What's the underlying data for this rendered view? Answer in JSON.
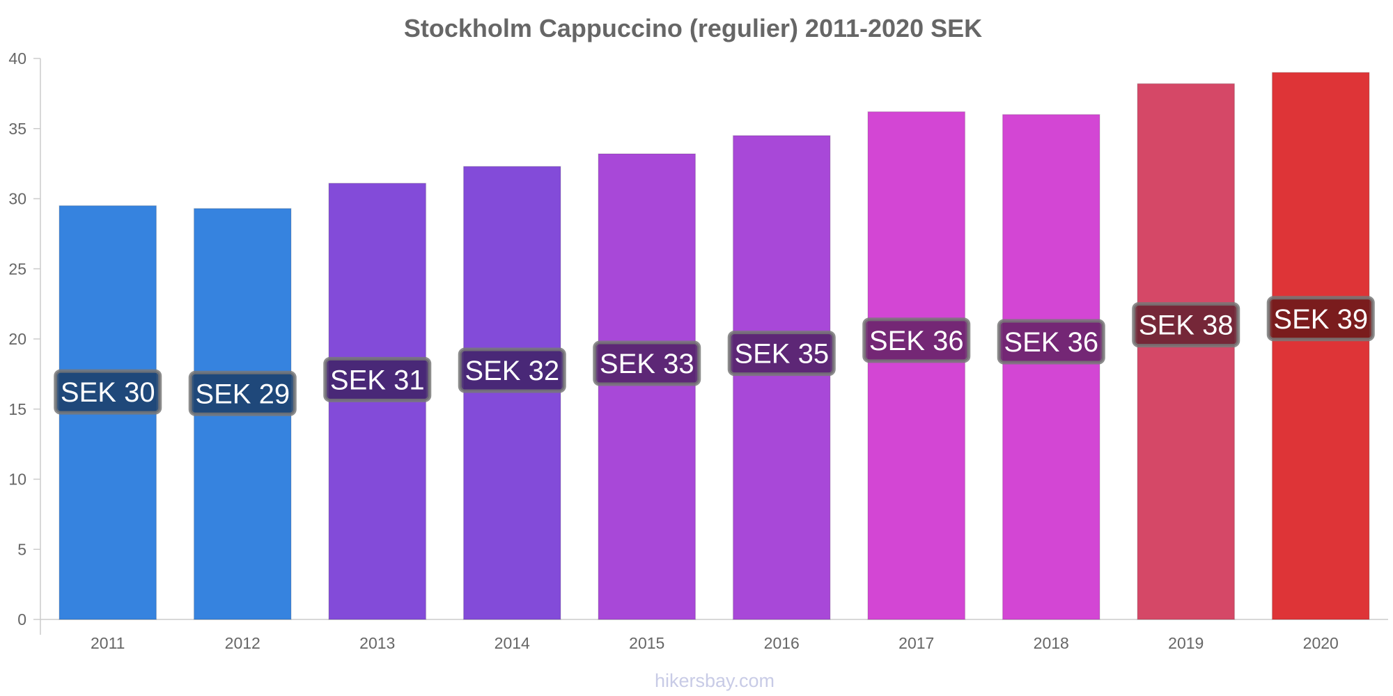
{
  "chart_data": {
    "type": "bar",
    "title": "Stockholm Cappuccino (regulier) 2011-2020 SEK",
    "xlabel": "",
    "ylabel": "",
    "ylim": [
      0,
      40
    ],
    "yticks": [
      0,
      5,
      10,
      15,
      20,
      25,
      30,
      35,
      40
    ],
    "grid": false,
    "categories": [
      "2011",
      "2012",
      "2013",
      "2014",
      "2015",
      "2016",
      "2017",
      "2018",
      "2019",
      "2020"
    ],
    "values": [
      29.5,
      29.3,
      31.1,
      32.3,
      33.2,
      34.5,
      36.2,
      36.0,
      38.2,
      39.0
    ],
    "data_labels": [
      "SEK 30",
      "SEK 29",
      "SEK 31",
      "SEK 32",
      "SEK 33",
      "SEK 35",
      "SEK 36",
      "SEK 36",
      "SEK 38",
      "SEK 39"
    ],
    "bar_colors": [
      "#3683df",
      "#3683df",
      "#834bd9",
      "#834bd9",
      "#a848d8",
      "#a848d8",
      "#d346d4",
      "#d346d4",
      "#d54867",
      "#de3437"
    ],
    "label_box_colors": [
      "#1d416f",
      "#1d416f",
      "#43256c",
      "#43256c",
      "#54246b",
      "#54246b",
      "#69236a",
      "#69236a",
      "#6a2333",
      "#6f1a1b"
    ]
  },
  "watermark": "hikersbay.com"
}
